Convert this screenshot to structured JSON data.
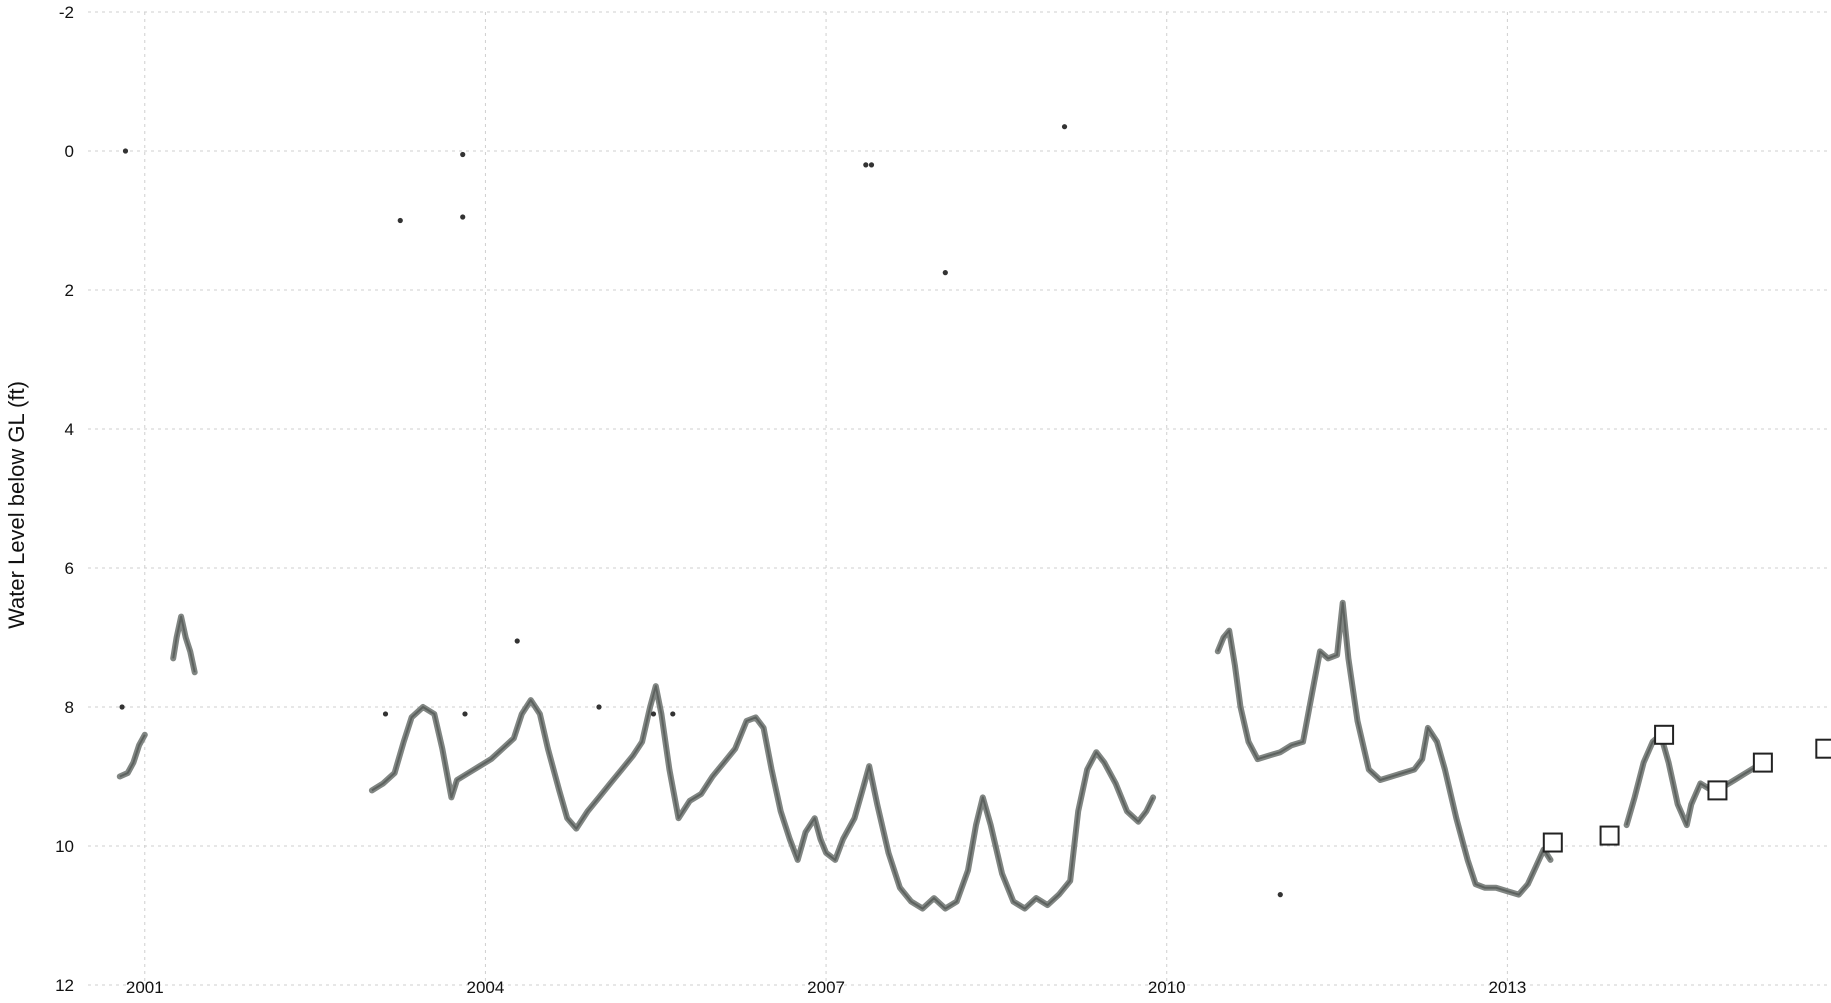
{
  "chart_data": {
    "type": "line",
    "title": "",
    "xlabel": "",
    "ylabel": "Water Level below GL (ft)",
    "xlim": [
      2000.5,
      2015.85
    ],
    "ylim": [
      12,
      -2
    ],
    "y_inverted": true,
    "grid": true,
    "legend": "none",
    "x_ticks": [
      {
        "value": 2001,
        "label": "2001"
      },
      {
        "value": 2004,
        "label": "2004"
      },
      {
        "value": 2007,
        "label": "2007"
      },
      {
        "value": 2010,
        "label": "2010"
      },
      {
        "value": 2013,
        "label": "2013"
      }
    ],
    "y_ticks": [
      {
        "value": -2,
        "label": "-2"
      },
      {
        "value": 0,
        "label": "0"
      },
      {
        "value": 2,
        "label": "2"
      },
      {
        "value": 4,
        "label": "4"
      },
      {
        "value": 6,
        "label": "6"
      },
      {
        "value": 8,
        "label": "8"
      },
      {
        "value": 10,
        "label": "10"
      },
      {
        "value": 12,
        "label": "12"
      }
    ],
    "colors": {
      "continuous": "#7a7f7c",
      "continuous_core": "#5d625f",
      "discrete": "#333333",
      "manual": "#222222"
    },
    "series": [
      {
        "kind": "continuous",
        "segments": [
          [
            [
              2000.78,
              9.0
            ],
            [
              2000.85,
              8.95
            ],
            [
              2000.9,
              8.8
            ],
            [
              2000.95,
              8.55
            ],
            [
              2001.0,
              8.4
            ]
          ],
          [
            [
              2001.25,
              7.3
            ],
            [
              2001.28,
              7.0
            ],
            [
              2001.32,
              6.7
            ],
            [
              2001.36,
              7.0
            ],
            [
              2001.4,
              7.2
            ],
            [
              2001.44,
              7.5
            ]
          ],
          [
            [
              2003.0,
              9.2
            ],
            [
              2003.1,
              9.1
            ],
            [
              2003.2,
              8.95
            ],
            [
              2003.28,
              8.5
            ],
            [
              2003.35,
              8.15
            ],
            [
              2003.45,
              8.0
            ],
            [
              2003.55,
              8.1
            ],
            [
              2003.62,
              8.6
            ],
            [
              2003.7,
              9.3
            ],
            [
              2003.75,
              9.05
            ],
            [
              2003.85,
              8.95
            ],
            [
              2003.95,
              8.85
            ],
            [
              2004.05,
              8.75
            ],
            [
              2004.15,
              8.6
            ],
            [
              2004.25,
              8.45
            ],
            [
              2004.32,
              8.1
            ],
            [
              2004.4,
              7.9
            ],
            [
              2004.48,
              8.1
            ],
            [
              2004.55,
              8.6
            ],
            [
              2004.65,
              9.2
            ],
            [
              2004.72,
              9.6
            ],
            [
              2004.8,
              9.75
            ],
            [
              2004.9,
              9.5
            ],
            [
              2005.0,
              9.3
            ],
            [
              2005.1,
              9.1
            ],
            [
              2005.2,
              8.9
            ],
            [
              2005.3,
              8.7
            ],
            [
              2005.38,
              8.5
            ],
            [
              2005.45,
              8.0
            ],
            [
              2005.5,
              7.7
            ],
            [
              2005.55,
              8.1
            ],
            [
              2005.62,
              8.9
            ],
            [
              2005.7,
              9.6
            ],
            [
              2005.8,
              9.35
            ],
            [
              2005.9,
              9.25
            ],
            [
              2006.0,
              9.0
            ],
            [
              2006.1,
              8.8
            ],
            [
              2006.2,
              8.6
            ],
            [
              2006.3,
              8.2
            ],
            [
              2006.38,
              8.15
            ],
            [
              2006.45,
              8.3
            ],
            [
              2006.52,
              8.9
            ],
            [
              2006.6,
              9.5
            ],
            [
              2006.68,
              9.9
            ],
            [
              2006.75,
              10.2
            ],
            [
              2006.82,
              9.8
            ],
            [
              2006.9,
              9.6
            ],
            [
              2006.95,
              9.9
            ],
            [
              2007.0,
              10.1
            ],
            [
              2007.08,
              10.2
            ],
            [
              2007.15,
              9.9
            ],
            [
              2007.25,
              9.6
            ],
            [
              2007.32,
              9.2
            ],
            [
              2007.38,
              8.85
            ],
            [
              2007.45,
              9.4
            ],
            [
              2007.55,
              10.1
            ],
            [
              2007.65,
              10.6
            ],
            [
              2007.75,
              10.8
            ],
            [
              2007.85,
              10.9
            ],
            [
              2007.95,
              10.75
            ],
            [
              2008.05,
              10.9
            ],
            [
              2008.15,
              10.8
            ],
            [
              2008.25,
              10.35
            ],
            [
              2008.32,
              9.7
            ],
            [
              2008.38,
              9.3
            ],
            [
              2008.45,
              9.7
            ],
            [
              2008.55,
              10.4
            ],
            [
              2008.65,
              10.8
            ],
            [
              2008.75,
              10.9
            ],
            [
              2008.85,
              10.75
            ],
            [
              2008.95,
              10.85
            ],
            [
              2009.05,
              10.7
            ],
            [
              2009.15,
              10.5
            ],
            [
              2009.22,
              9.5
            ],
            [
              2009.3,
              8.9
            ],
            [
              2009.38,
              8.65
            ],
            [
              2009.45,
              8.8
            ],
            [
              2009.55,
              9.1
            ],
            [
              2009.65,
              9.5
            ],
            [
              2009.75,
              9.65
            ],
            [
              2009.82,
              9.5
            ],
            [
              2009.88,
              9.3
            ]
          ],
          [
            [
              2010.45,
              7.2
            ],
            [
              2010.5,
              7.0
            ],
            [
              2010.55,
              6.9
            ],
            [
              2010.6,
              7.4
            ],
            [
              2010.65,
              8.0
            ],
            [
              2010.72,
              8.5
            ],
            [
              2010.8,
              8.75
            ],
            [
              2010.9,
              8.7
            ],
            [
              2011.0,
              8.65
            ],
            [
              2011.1,
              8.55
            ],
            [
              2011.2,
              8.5
            ],
            [
              2011.28,
              7.8
            ],
            [
              2011.35,
              7.2
            ],
            [
              2011.42,
              7.3
            ],
            [
              2011.5,
              7.25
            ],
            [
              2011.55,
              6.5
            ],
            [
              2011.6,
              7.3
            ],
            [
              2011.68,
              8.2
            ],
            [
              2011.78,
              8.9
            ],
            [
              2011.88,
              9.05
            ],
            [
              2011.98,
              9.0
            ],
            [
              2012.08,
              8.95
            ],
            [
              2012.18,
              8.9
            ],
            [
              2012.25,
              8.75
            ],
            [
              2012.3,
              8.3
            ],
            [
              2012.38,
              8.5
            ],
            [
              2012.45,
              8.9
            ],
            [
              2012.55,
              9.6
            ],
            [
              2012.65,
              10.2
            ],
            [
              2012.72,
              10.55
            ],
            [
              2012.8,
              10.6
            ],
            [
              2012.9,
              10.6
            ],
            [
              2013.0,
              10.65
            ],
            [
              2013.1,
              10.7
            ],
            [
              2013.18,
              10.55
            ],
            [
              2013.25,
              10.3
            ],
            [
              2013.32,
              10.05
            ],
            [
              2013.38,
              10.2
            ]
          ],
          [
            [
              2014.05,
              9.7
            ],
            [
              2014.12,
              9.3
            ],
            [
              2014.2,
              8.8
            ],
            [
              2014.28,
              8.5
            ],
            [
              2014.35,
              8.4
            ],
            [
              2014.42,
              8.8
            ],
            [
              2014.5,
              9.4
            ],
            [
              2014.58,
              9.7
            ],
            [
              2014.62,
              9.4
            ],
            [
              2014.7,
              9.1
            ],
            [
              2014.8,
              9.2
            ],
            [
              2014.9,
              9.15
            ],
            [
              2015.0,
              9.05
            ],
            [
              2015.1,
              8.95
            ],
            [
              2015.2,
              8.85
            ],
            [
              2015.28,
              8.8
            ]
          ]
        ]
      },
      {
        "kind": "discrete",
        "points": [
          [
            2000.83,
            0.0
          ],
          [
            2000.8,
            8.0
          ],
          [
            2003.12,
            8.1
          ],
          [
            2003.25,
            1.0
          ],
          [
            2003.8,
            0.05
          ],
          [
            2003.8,
            0.95
          ],
          [
            2003.82,
            8.1
          ],
          [
            2004.28,
            7.05
          ],
          [
            2005.0,
            8.0
          ],
          [
            2005.48,
            8.1
          ],
          [
            2005.65,
            8.1
          ],
          [
            2007.35,
            0.2
          ],
          [
            2007.4,
            0.2
          ],
          [
            2008.05,
            1.75
          ],
          [
            2009.1,
            -0.35
          ],
          [
            2011.0,
            10.7
          ]
        ]
      },
      {
        "kind": "manual",
        "points": [
          [
            2013.4,
            9.95
          ],
          [
            2013.9,
            9.85
          ],
          [
            2014.38,
            8.4
          ],
          [
            2014.85,
            9.2
          ],
          [
            2015.25,
            8.8
          ],
          [
            2015.8,
            8.6
          ]
        ]
      }
    ]
  }
}
